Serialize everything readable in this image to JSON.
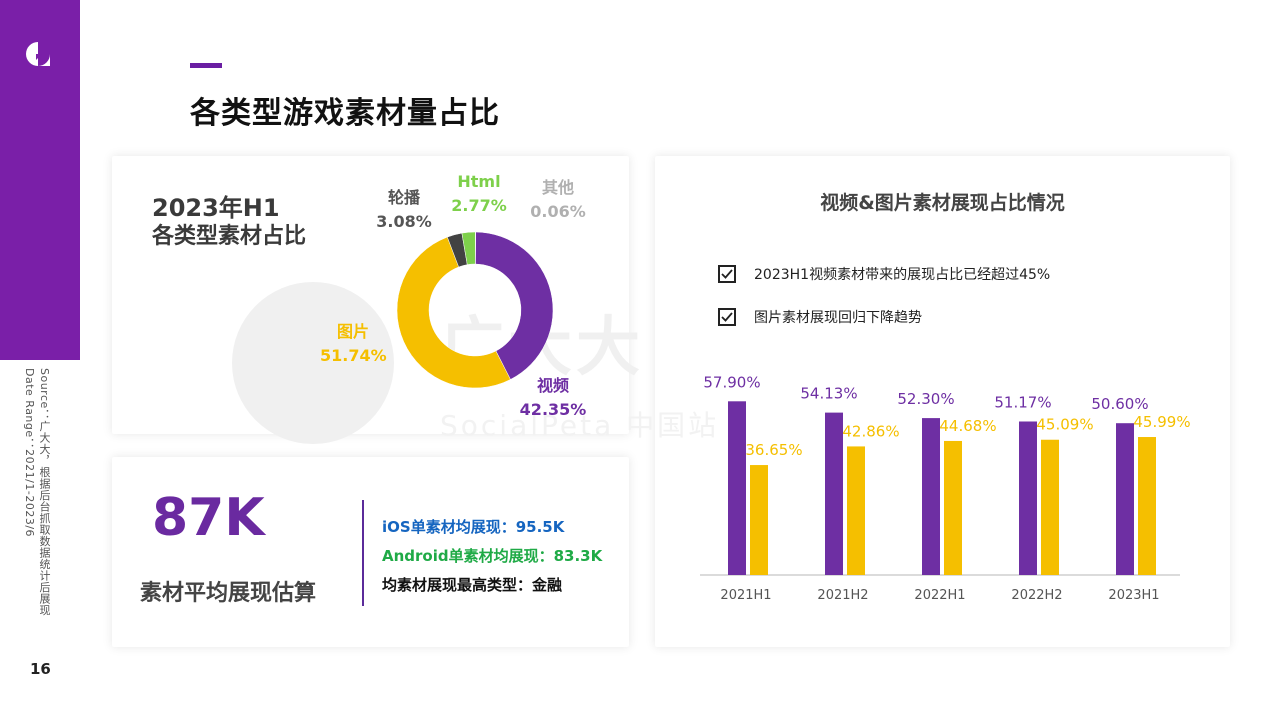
{
  "page": {
    "title": "各类型游戏素材量占比",
    "page_number": "16",
    "source": "Source：广大大，根据后台抓取数据统计后展现",
    "date_range": "Date Range：2021/1-2023/6",
    "watermark": "广大大",
    "watermark_sub": "SocialPeta 中国站"
  },
  "donut_card": {
    "heading_line1": "2023年H1",
    "heading_line2": "各类型素材占比"
  },
  "stats_card": {
    "big_number": "87K",
    "big_label": "素材平均展现估算",
    "ios_line": "iOS单素材均展现：95.5K",
    "android_line": "Android单素材均展现：83.3K",
    "top_type_line": "均素材展现最高类型：金融",
    "colors": {
      "ios": "#1565c0",
      "android": "#1faa46",
      "top": "#111111"
    }
  },
  "bar_card": {
    "title": "视频&图片素材展现占比情况",
    "checks": [
      "2023H1视频素材带来的展现占比已经超过45%",
      "图片素材展现回归下降趋势"
    ]
  },
  "chart_data": [
    {
      "type": "pie",
      "title": "2023年H1 各类型素材占比",
      "donut": true,
      "slices": [
        {
          "name": "视频",
          "value": 42.35,
          "label": "42.35%",
          "color": "#6e2fa3"
        },
        {
          "name": "图片",
          "value": 51.74,
          "label": "51.74%",
          "color": "#f5bf00"
        },
        {
          "name": "轮播",
          "value": 3.08,
          "label": "3.08%",
          "color": "#424242"
        },
        {
          "name": "Html",
          "value": 2.77,
          "label": "2.77%",
          "color": "#7ed04b"
        },
        {
          "name": "其他",
          "value": 0.06,
          "label": "0.06%",
          "color": "#bdbdbd"
        }
      ]
    },
    {
      "type": "bar",
      "title": "视频&图片素材展现占比情况",
      "categories": [
        "2021H1",
        "2021H2",
        "2022H1",
        "2022H2",
        "2023H1"
      ],
      "series": [
        {
          "values": [
            57.9,
            54.13,
            52.3,
            51.17,
            50.6
          ],
          "labels": [
            "57.90%",
            "54.13%",
            "52.30%",
            "51.17%",
            "50.60%"
          ],
          "color": "#6e2fa3"
        },
        {
          "values": [
            36.65,
            42.86,
            44.68,
            45.09,
            45.99
          ],
          "labels": [
            "36.65%",
            "42.86%",
            "44.68%",
            "45.09%",
            "45.99%"
          ],
          "color": "#f5bf00"
        }
      ],
      "ylim": [
        0,
        80
      ],
      "grid": false,
      "legend": "none"
    }
  ]
}
